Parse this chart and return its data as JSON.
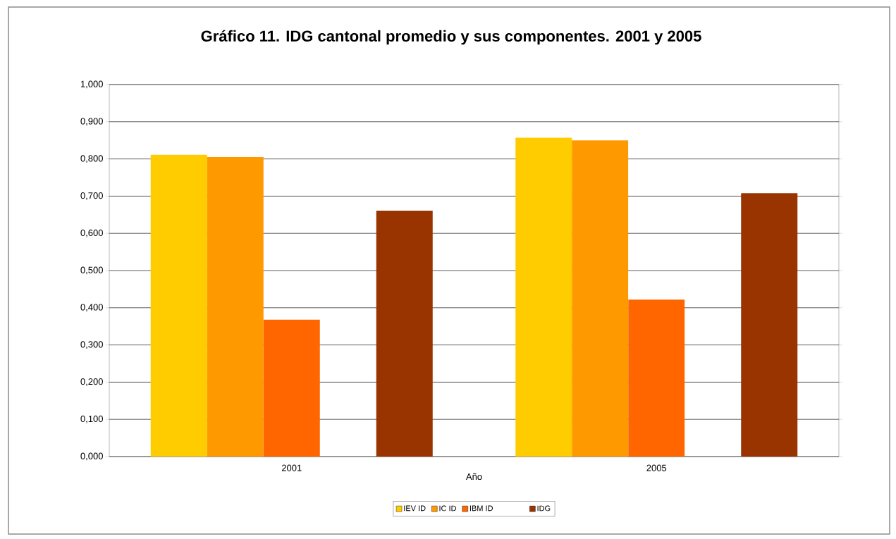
{
  "chart_data": {
    "type": "bar",
    "title": "Gráfico 11. IDG cantonal promedio y sus componentes. 2001 y 2005",
    "xlabel": "Año",
    "categories": [
      "2001",
      "2005"
    ],
    "series": [
      {
        "name": "IEV ID",
        "color": "#ffcc00",
        "values": [
          0.811,
          0.857
        ]
      },
      {
        "name": "IC ID",
        "color": "#ff9900",
        "values": [
          0.805,
          0.85
        ]
      },
      {
        "name": "IBM ID",
        "color": "#ff6600",
        "values": [
          0.368,
          0.422
        ]
      },
      {
        "values": [
          null,
          null
        ]
      },
      {
        "name": "IDG",
        "color": "#993300",
        "values": [
          0.661,
          0.708
        ]
      }
    ],
    "ylim": [
      0,
      1
    ],
    "yticks": [
      {
        "value": 0,
        "label": "0,000"
      },
      {
        "value": 0.1,
        "label": "0,100"
      },
      {
        "value": 0.2,
        "label": "0,200"
      },
      {
        "value": 0.3,
        "label": "0,300"
      },
      {
        "value": 0.4,
        "label": "0,400"
      },
      {
        "value": 0.5,
        "label": "0,500"
      },
      {
        "value": 0.6,
        "label": "0,600"
      },
      {
        "value": 0.7,
        "label": "0,700"
      },
      {
        "value": 0.8,
        "label": "0,800"
      },
      {
        "value": 0.9,
        "label": "0,900"
      },
      {
        "value": 1,
        "label": "1,000"
      }
    ],
    "grid": "y",
    "legend": "bottom"
  }
}
